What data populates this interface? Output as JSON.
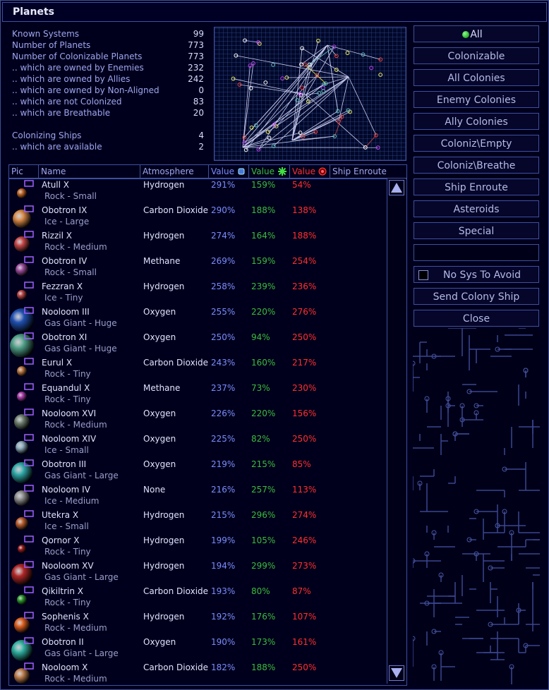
{
  "window": {
    "title": "Planets"
  },
  "stats": [
    {
      "label": "Known Systems",
      "value": "99"
    },
    {
      "label": "Number of Planets",
      "value": "773"
    },
    {
      "label": "Number of Colonizable Planets",
      "value": "773"
    },
    {
      "label": ".. which are owned by Enemies",
      "value": "232"
    },
    {
      "label": ".. which are owned by Allies",
      "value": "242"
    },
    {
      "label": ".. which are owned by Non-Aligned",
      "value": "0"
    },
    {
      "label": ".. which are not Colonized",
      "value": "83"
    },
    {
      "label": ".. which are Breathable",
      "value": "20"
    }
  ],
  "ships": [
    {
      "label": "Colonizing Ships",
      "value": "4"
    },
    {
      "label": ".. which are available",
      "value": "2"
    }
  ],
  "table": {
    "headers": [
      "Pic",
      "Name",
      "Atmosphere",
      "Value",
      "Value",
      "Value",
      "Ship Enroute"
    ],
    "rows": [
      [
        "Atull X",
        "Rock - Small",
        "Hydrogen",
        "291%",
        "159%",
        "54%"
      ],
      [
        "Obotron IX",
        "Ice - Large",
        "Carbon Dioxide",
        "290%",
        "188%",
        "138%"
      ],
      [
        "Rizzil X",
        "Rock - Medium",
        "Hydrogen",
        "274%",
        "164%",
        "188%"
      ],
      [
        "Obotron IV",
        "Rock - Small",
        "Methane",
        "269%",
        "159%",
        "254%"
      ],
      [
        "Fezzran X",
        "Ice - Tiny",
        "Hydrogen",
        "258%",
        "239%",
        "236%"
      ],
      [
        "Nooloom III",
        "Gas Giant - Huge",
        "Oxygen",
        "255%",
        "220%",
        "276%"
      ],
      [
        "Obotron XI",
        "Gas Giant - Huge",
        "Oxygen",
        "250%",
        "94%",
        "250%"
      ],
      [
        "Eurul X",
        "Rock - Tiny",
        "Carbon Dioxide",
        "243%",
        "160%",
        "217%"
      ],
      [
        "Equandul X",
        "Rock - Tiny",
        "Methane",
        "237%",
        "73%",
        "230%"
      ],
      [
        "Nooloom XVI",
        "Rock - Medium",
        "Oxygen",
        "226%",
        "220%",
        "156%"
      ],
      [
        "Nooloom XIV",
        "Ice - Small",
        "Oxygen",
        "225%",
        "82%",
        "250%"
      ],
      [
        "Obotron III",
        "Gas Giant - Large",
        "Oxygen",
        "219%",
        "215%",
        "85%"
      ],
      [
        "Nooloom IV",
        "Ice - Medium",
        "None",
        "216%",
        "257%",
        "113%"
      ],
      [
        "Utekra X",
        "Ice - Small",
        "Hydrogen",
        "215%",
        "296%",
        "274%"
      ],
      [
        "Qornor X",
        "Rock - Tiny",
        "Hydrogen",
        "199%",
        "105%",
        "246%"
      ],
      [
        "Nooloom XV",
        "Gas Giant - Large",
        "Hydrogen",
        "194%",
        "299%",
        "273%"
      ],
      [
        "Qikiltrin X",
        "Rock - Tiny",
        "Carbon Dioxide",
        "193%",
        "80%",
        "87%"
      ],
      [
        "Sophenis X",
        "Rock - Medium",
        "Hydrogen",
        "192%",
        "176%",
        "107%"
      ],
      [
        "Obotron II",
        "Gas Giant - Large",
        "Oxygen",
        "190%",
        "173%",
        "161%"
      ],
      [
        "Nooloom X",
        "Rock - Medium",
        "Carbon Dioxide",
        "182%",
        "188%",
        "250%"
      ]
    ]
  },
  "buttons": [
    "All",
    "Colonizable",
    "All Colonies",
    "Enemy Colonies",
    "Ally Colonies",
    "Coloniz\\Empty",
    "Coloniz\\Breathe",
    "Ship Enroute",
    "Asteroids",
    "Special"
  ],
  "checkbox": "No Sys To Avoid",
  "actions": [
    "Send Colony Ship",
    "Close"
  ]
}
